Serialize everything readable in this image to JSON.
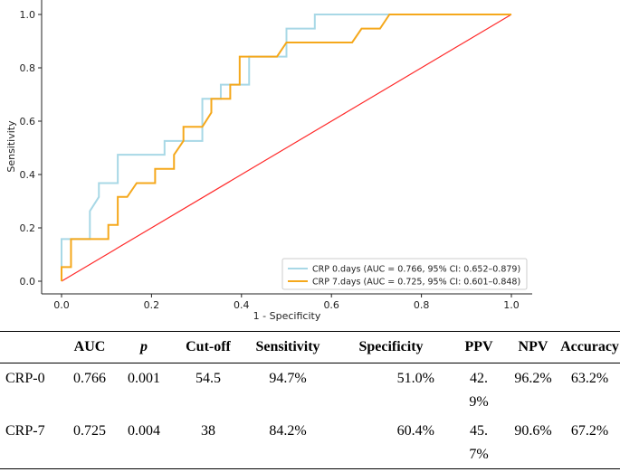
{
  "chart_data": {
    "type": "line",
    "xlabel": "1 - Specificity",
    "ylabel": "Sensitivity",
    "xlim": [
      0.0,
      1.0
    ],
    "ylim": [
      0.0,
      1.0
    ],
    "xticks": [
      "0.0",
      "0.2",
      "0.4",
      "0.6",
      "0.8",
      "1.0"
    ],
    "yticks": [
      "0.0",
      "0.2",
      "0.4",
      "0.6",
      "0.8",
      "1.0"
    ],
    "legend_position": "bottom-right",
    "series": [
      {
        "name": "CRP 0.days (AUC = 0.766, 95% CI: 0.652–0.879)",
        "color": "#a8d8e6",
        "x": [
          0.0,
          0.0,
          0.021,
          0.021,
          0.063,
          0.063,
          0.083,
          0.083,
          0.125,
          0.125,
          0.229,
          0.229,
          0.313,
          0.313,
          0.354,
          0.354,
          0.375,
          0.375,
          0.417,
          0.417,
          0.5,
          0.5,
          0.563,
          0.563,
          1.0
        ],
        "y": [
          0.0,
          0.158,
          0.158,
          0.158,
          0.158,
          0.263,
          0.316,
          0.368,
          0.368,
          0.474,
          0.474,
          0.526,
          0.526,
          0.684,
          0.684,
          0.737,
          0.737,
          0.737,
          0.737,
          0.842,
          0.842,
          0.947,
          0.947,
          1.0,
          1.0
        ]
      },
      {
        "name": "CRP 7.days (AUC = 0.725, 95% CI: 0.601–0.848)",
        "color": "#f5a81c",
        "x": [
          0.0,
          0.0,
          0.021,
          0.021,
          0.104,
          0.104,
          0.125,
          0.125,
          0.146,
          0.167,
          0.208,
          0.208,
          0.25,
          0.25,
          0.271,
          0.271,
          0.313,
          0.333,
          0.333,
          0.354,
          0.375,
          0.375,
          0.396,
          0.396,
          0.479,
          0.5,
          0.646,
          0.667,
          0.708,
          0.729,
          1.0
        ],
        "y": [
          0.0,
          0.053,
          0.053,
          0.158,
          0.158,
          0.211,
          0.211,
          0.316,
          0.316,
          0.368,
          0.368,
          0.421,
          0.421,
          0.474,
          0.526,
          0.579,
          0.579,
          0.632,
          0.684,
          0.684,
          0.684,
          0.737,
          0.737,
          0.842,
          0.842,
          0.895,
          0.895,
          0.947,
          0.947,
          1.0,
          1.0
        ]
      },
      {
        "name": "",
        "color": "#ff2a2a",
        "x": [
          0.0,
          1.0
        ],
        "y": [
          0.0,
          1.0
        ]
      }
    ]
  },
  "table": {
    "headers": [
      "",
      "AUC",
      "p",
      "Cut-off",
      "Sensitivity",
      "Specificity",
      "PPV",
      "NPV",
      "Accuracy"
    ],
    "rows": [
      {
        "name": "CRP-0",
        "auc": "0.766",
        "p": "0.001",
        "cutoff": "54.5",
        "sensitivity": "94.7%",
        "specificity": "51.0%",
        "ppv": "42.9%",
        "npv": "96.2%",
        "accuracy": "63.2%"
      },
      {
        "name": "CRP-7",
        "auc": "0.725",
        "p": "0.004",
        "cutoff": "38",
        "sensitivity": "84.2%",
        "specificity": "60.4%",
        "ppv": "45.7%",
        "npv": "90.6%",
        "accuracy": "67.2%"
      }
    ]
  }
}
